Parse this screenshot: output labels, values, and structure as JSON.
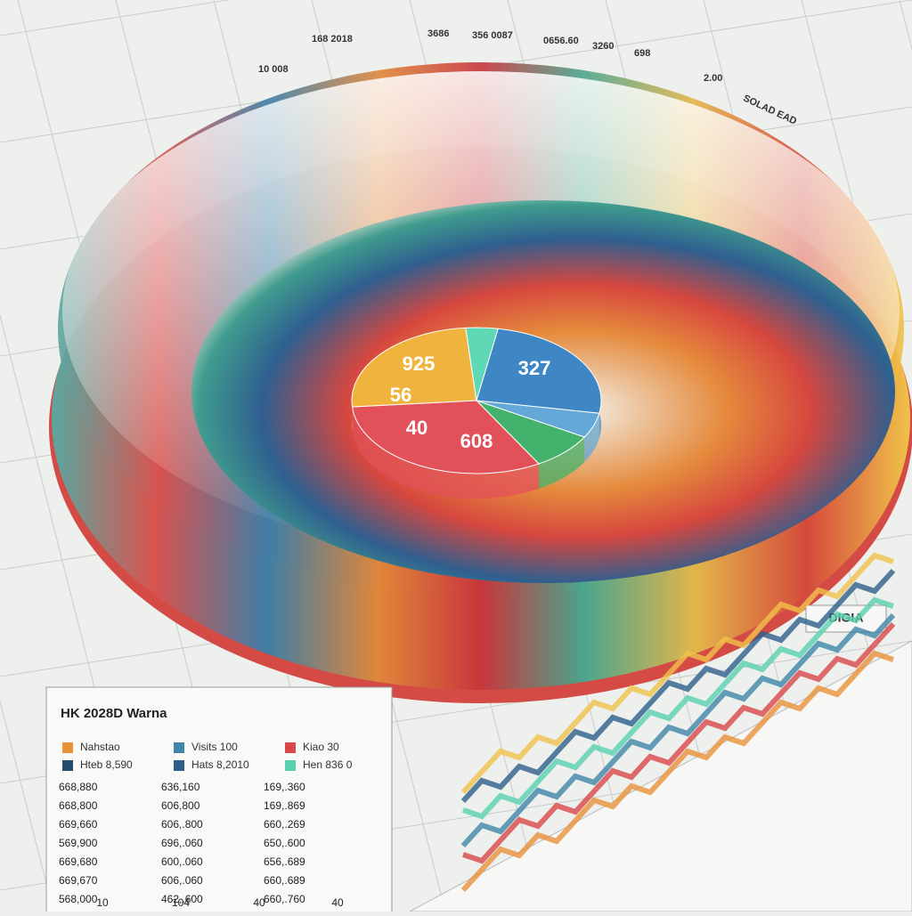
{
  "rim_labels": [
    "10 008",
    "168 2018",
    "3686",
    "356 0087",
    "0656.60",
    "3260",
    "698",
    "2.00",
    "SOLAD EAD"
  ],
  "badge": "DIGIA",
  "pie_labels": [
    "925",
    "327",
    "56",
    "40",
    "608"
  ],
  "panel": {
    "title": "HK 2028D Warna",
    "legend": [
      {
        "label": "Nahstao",
        "color": "#e8913a"
      },
      {
        "label": "Visits 100",
        "color": "#3f86a8"
      },
      {
        "label": "Kiao 30",
        "color": "#d9474a"
      },
      {
        "label": "Hteb 8,590",
        "color": "#234c6e"
      },
      {
        "label": "Hats 8,2010",
        "color": "#2d5f8a"
      },
      {
        "label": "Hen 836 0",
        "color": "#59d1b0"
      }
    ],
    "rows": [
      [
        "668,880",
        "636,160",
        "169,.360"
      ],
      [
        "668,800",
        "606,800",
        "169,.869"
      ],
      [
        "669,660",
        "606,.800",
        "660,.269"
      ],
      [
        "569,900",
        "696,.060",
        "650,.600"
      ],
      [
        "669,680",
        "600,.060",
        "656,.689"
      ],
      [
        "669,670",
        "606,.060",
        "660,.689"
      ],
      [
        "568,000",
        "462,.600",
        "660,.760"
      ]
    ],
    "footer": [
      "10",
      "104",
      "40",
      "40"
    ]
  }
}
